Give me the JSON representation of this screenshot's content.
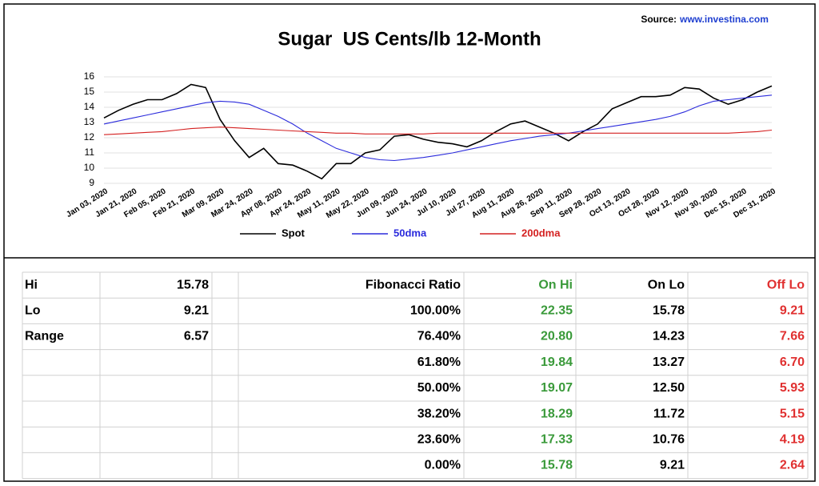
{
  "source": {
    "label": "Source:",
    "link": "www.investina.com"
  },
  "chart_data": {
    "type": "line",
    "title": "Sugar  US Cents/lb 12-Month",
    "categories": [
      "Jan 03, 2020",
      null,
      "Jan 21, 2020",
      null,
      "Feb 05, 2020",
      null,
      "Feb 21, 2020",
      null,
      "Mar 09, 2020",
      null,
      "Mar 24, 2020",
      null,
      "Apr 08, 2020",
      null,
      "Apr 24, 2020",
      null,
      "May 11, 2020",
      null,
      "May 22, 2020",
      null,
      "Jun 09, 2020",
      null,
      "Jun 24, 2020",
      null,
      "Jul 10, 2020",
      null,
      "Jul 27, 2020",
      null,
      "Aug 11, 2020",
      null,
      "Aug 26, 2020",
      null,
      "Sep 11, 2020",
      null,
      "Sep 28, 2020",
      null,
      "Oct 13, 2020",
      null,
      "Oct 28, 2020",
      null,
      "Nov 12, 2020",
      null,
      "Nov 30, 2020",
      null,
      "Dec 15, 2020",
      null,
      "Dec 31, 2020"
    ],
    "series": [
      {
        "name": "Spot",
        "color": "#000000",
        "values": [
          13.3,
          13.8,
          14.2,
          14.5,
          14.5,
          14.9,
          15.5,
          15.3,
          13.2,
          11.8,
          10.7,
          11.3,
          10.3,
          10.2,
          9.8,
          9.3,
          10.3,
          10.3,
          11.0,
          11.2,
          12.1,
          12.2,
          11.9,
          11.7,
          11.6,
          11.4,
          11.8,
          12.4,
          12.9,
          13.1,
          12.7,
          12.3,
          11.8,
          12.4,
          12.9,
          13.9,
          14.3,
          14.7,
          14.7,
          14.8,
          15.3,
          15.2,
          14.6,
          14.2,
          14.5,
          15.0,
          15.4
        ]
      },
      {
        "name": "50dma",
        "color": "#2b2bdc",
        "values": [
          12.9,
          13.1,
          13.3,
          13.5,
          13.7,
          13.9,
          14.1,
          14.3,
          14.4,
          14.35,
          14.2,
          13.8,
          13.4,
          12.9,
          12.3,
          11.8,
          11.3,
          11.0,
          10.7,
          10.55,
          10.5,
          10.6,
          10.7,
          10.85,
          11.0,
          11.2,
          11.4,
          11.6,
          11.8,
          11.95,
          12.1,
          12.2,
          12.3,
          12.45,
          12.6,
          12.75,
          12.9,
          13.05,
          13.2,
          13.4,
          13.7,
          14.1,
          14.4,
          14.5,
          14.6,
          14.7,
          14.8
        ]
      },
      {
        "name": "200dma",
        "color": "#d42020",
        "values": [
          12.2,
          12.25,
          12.3,
          12.35,
          12.4,
          12.5,
          12.6,
          12.65,
          12.7,
          12.65,
          12.6,
          12.55,
          12.5,
          12.45,
          12.4,
          12.35,
          12.3,
          12.3,
          12.25,
          12.25,
          12.25,
          12.25,
          12.25,
          12.3,
          12.3,
          12.3,
          12.3,
          12.3,
          12.3,
          12.3,
          12.3,
          12.3,
          12.3,
          12.3,
          12.3,
          12.3,
          12.3,
          12.3,
          12.3,
          12.3,
          12.3,
          12.3,
          12.3,
          12.3,
          12.35,
          12.4,
          12.5
        ]
      }
    ],
    "ylim": [
      9,
      16
    ],
    "yticks": [
      9,
      10,
      11,
      12,
      13,
      14,
      15,
      16
    ],
    "grid": true
  },
  "table": {
    "summary": [
      {
        "label": "Hi",
        "value": "15.78"
      },
      {
        "label": "Lo",
        "value": "9.21"
      },
      {
        "label": "Range",
        "value": "6.57"
      }
    ],
    "columns": [
      {
        "text": "Fibonacci Ratio",
        "color": "#000000"
      },
      {
        "text": "On Hi",
        "color": "#3a9a3a"
      },
      {
        "text": "On Lo",
        "color": "#000000"
      },
      {
        "text": "Off Lo",
        "color": "#e03030"
      }
    ],
    "rows": [
      [
        "100.00%",
        "22.35",
        "15.78",
        "9.21"
      ],
      [
        "76.40%",
        "20.80",
        "14.23",
        "7.66"
      ],
      [
        "61.80%",
        "19.84",
        "13.27",
        "6.70"
      ],
      [
        "50.00%",
        "19.07",
        "12.50",
        "5.93"
      ],
      [
        "38.20%",
        "18.29",
        "11.72",
        "5.15"
      ],
      [
        "23.60%",
        "17.33",
        "10.76",
        "4.19"
      ],
      [
        "0.00%",
        "15.78",
        "9.21",
        "2.64"
      ]
    ]
  }
}
